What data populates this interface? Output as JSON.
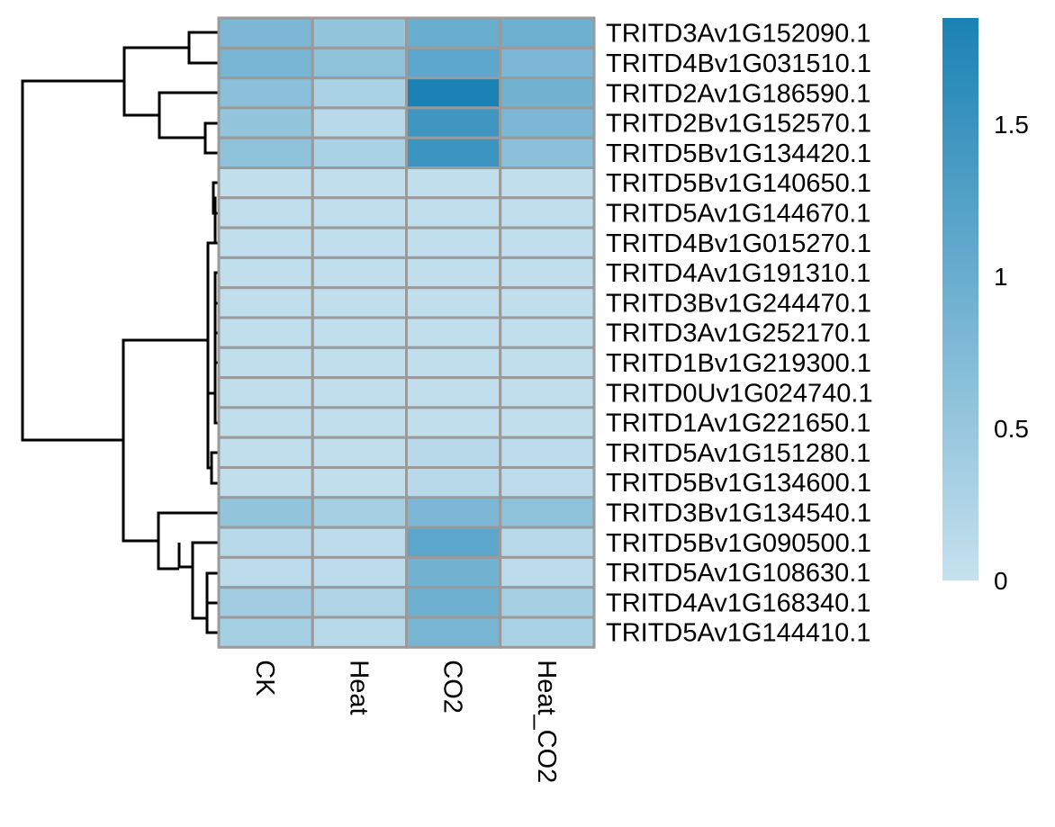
{
  "chart_data": {
    "type": "heatmap",
    "title": "",
    "xlabel": "",
    "ylabel": "",
    "columns": [
      "CK",
      "Heat",
      "CO2",
      "Heat_CO2"
    ],
    "rows": [
      "TRITD3Av1G152090.1",
      "TRITD4Bv1G031510.1",
      "TRITD2Av1G186590.1",
      "TRITD2Bv1G152570.1",
      "TRITD5Bv1G134420.1",
      "TRITD5Bv1G140650.1",
      "TRITD5Av1G144670.1",
      "TRITD4Bv1G015270.1",
      "TRITD4Av1G191310.1",
      "TRITD3Bv1G244470.1",
      "TRITD3Av1G252170.1",
      "TRITD1Bv1G219300.1",
      "TRITD0Uv1G024740.1",
      "TRITD1Av1G221650.1",
      "TRITD5Av1G151280.1",
      "TRITD5Bv1G134600.1",
      "TRITD3Bv1G134540.1",
      "TRITD5Bv1G090500.1",
      "TRITD5Av1G108630.1",
      "TRITD4Av1G168340.1",
      "TRITD5Av1G144410.1"
    ],
    "values": [
      [
        0.8,
        0.55,
        1.0,
        0.95
      ],
      [
        0.85,
        0.6,
        1.15,
        0.8
      ],
      [
        0.65,
        0.3,
        1.85,
        0.9
      ],
      [
        0.55,
        0.15,
        1.45,
        0.8
      ],
      [
        0.6,
        0.3,
        1.5,
        0.65
      ],
      [
        0.05,
        0.05,
        0.05,
        0.05
      ],
      [
        0.05,
        0.05,
        0.05,
        0.05
      ],
      [
        0.05,
        0.05,
        0.05,
        0.05
      ],
      [
        0.05,
        0.05,
        0.05,
        0.05
      ],
      [
        0.05,
        0.05,
        0.05,
        0.05
      ],
      [
        0.05,
        0.05,
        0.05,
        0.05
      ],
      [
        0.05,
        0.05,
        0.05,
        0.05
      ],
      [
        0.05,
        0.05,
        0.05,
        0.05
      ],
      [
        0.05,
        0.05,
        0.05,
        0.05
      ],
      [
        0.05,
        0.05,
        0.15,
        0.1
      ],
      [
        0.05,
        0.05,
        0.15,
        0.1
      ],
      [
        0.55,
        0.35,
        0.8,
        0.6
      ],
      [
        0.15,
        0.1,
        1.15,
        0.15
      ],
      [
        0.1,
        0.1,
        0.9,
        0.1
      ],
      [
        0.4,
        0.25,
        0.95,
        0.35
      ],
      [
        0.35,
        0.15,
        0.85,
        0.3
      ]
    ],
    "legend": {
      "placement": "right",
      "range": [
        0,
        1.85
      ],
      "ticks": [
        0,
        0.5,
        1,
        1.5
      ],
      "tick_labels": [
        "0",
        "0.5",
        "1",
        "1.5"
      ],
      "color_low": "#c6e1ee",
      "color_high": "#1a82b4"
    },
    "row_dendrogram": "left",
    "cell_border_color": "#9a9a9a"
  }
}
